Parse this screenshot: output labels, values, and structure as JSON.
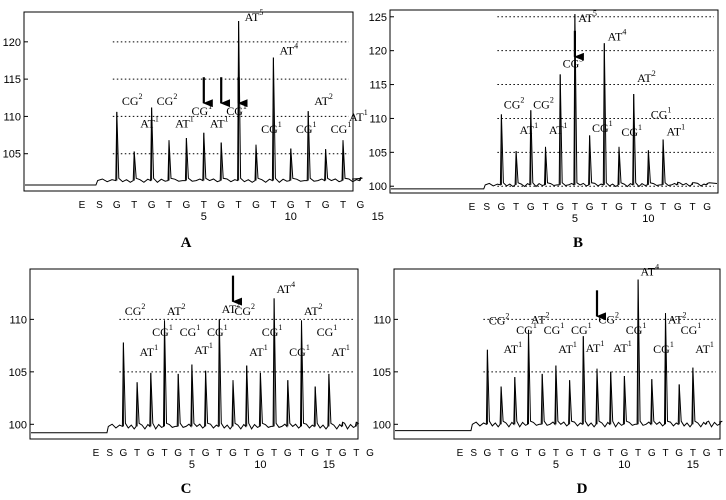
{
  "chart_data": [
    {
      "type": "line",
      "panel": "A",
      "ylim": [
        100,
        124
      ],
      "yticks": [
        105,
        110,
        115,
        120
      ],
      "dotted_levels": [
        105,
        110,
        115,
        120
      ],
      "baseline_dispensed": 101.4,
      "dispensation": [
        "E",
        "S",
        "G",
        "T",
        "G",
        "T",
        "G",
        "T",
        "G",
        "T",
        "G",
        "T",
        "G",
        "T",
        "G",
        "T",
        "G"
      ],
      "x_numbers": [
        {
          "pos": 7,
          "label": "5"
        },
        {
          "pos": 12,
          "label": "10"
        },
        {
          "pos": 17,
          "label": "15"
        }
      ],
      "peaks": [
        110.6,
        105.3,
        111.2,
        106.8,
        107.1,
        107.8,
        106.5,
        122.8,
        106.2,
        117.9,
        105.7,
        110.7,
        105.6,
        106.8,
        101.8
      ],
      "annotations": [
        {
          "label": "CG",
          "sup": "2",
          "pos": 3,
          "y": 111.5
        },
        {
          "label": "AT",
          "sup": "1",
          "pos": 4,
          "y": 108.5
        },
        {
          "label": "CG",
          "sup": "2",
          "pos": 5,
          "y": 111.5
        },
        {
          "label": "AT",
          "sup": "1",
          "pos": 6,
          "y": 108.5
        },
        {
          "label": "CG",
          "sup": "1",
          "pos": 7,
          "y": 110.2
        },
        {
          "label": "AT",
          "sup": "1",
          "pos": 8,
          "y": 108.5
        },
        {
          "label": "CG",
          "sup": "1",
          "pos": 9,
          "y": 110.2
        },
        {
          "label": "AT",
          "sup": "5",
          "pos": 10,
          "y": 122.8
        },
        {
          "label": "CG",
          "sup": "1",
          "pos": 11,
          "y": 107.8
        },
        {
          "label": "AT",
          "sup": "4",
          "pos": 12,
          "y": 118.3
        },
        {
          "label": "CG",
          "sup": "1",
          "pos": 13,
          "y": 107.8
        },
        {
          "label": "AT",
          "sup": "2",
          "pos": 14,
          "y": 111.5
        },
        {
          "label": "CG",
          "sup": "1",
          "pos": 15,
          "y": 107.8
        },
        {
          "label": "AT",
          "sup": "1",
          "pos": 16,
          "y": 109.4
        }
      ],
      "arrows": [
        7,
        8,
        9
      ],
      "arrow_tip": 111.5
    },
    {
      "type": "line",
      "panel": "B",
      "ylim": [
        99,
        126
      ],
      "yticks": [
        100,
        105,
        110,
        115,
        120,
        125
      ],
      "dotted_levels": [
        100,
        105,
        110,
        115,
        120,
        125
      ],
      "baseline_dispensed": 100.2,
      "dispensation": [
        "E",
        "S",
        "G",
        "T",
        "G",
        "T",
        "G",
        "T",
        "G",
        "T",
        "G",
        "T",
        "G",
        "T",
        "G",
        "T",
        "G"
      ],
      "x_numbers": [
        {
          "pos": 7,
          "label": "5"
        },
        {
          "pos": 12,
          "label": "10"
        }
      ],
      "peaks": [
        110.6,
        105.2,
        111.2,
        105.8,
        116.5,
        125.4,
        107.5,
        121.1,
        105.8,
        113.6,
        105.3,
        106.9,
        100.6,
        100.5,
        100.4
      ],
      "annotations": [
        {
          "label": "CG",
          "sup": "2",
          "pos": 3,
          "y": 111.5
        },
        {
          "label": "AT",
          "sup": "1",
          "pos": 4,
          "y": 107.7
        },
        {
          "label": "CG",
          "sup": "2",
          "pos": 5,
          "y": 111.5
        },
        {
          "label": "AT",
          "sup": "1",
          "pos": 6,
          "y": 107.7
        },
        {
          "label": "CG",
          "sup": "3",
          "pos": 7,
          "y": 117.5
        },
        {
          "label": "AT",
          "sup": "5",
          "pos": 8,
          "y": 124.2
        },
        {
          "label": "CG",
          "sup": "1",
          "pos": 9,
          "y": 108.0
        },
        {
          "label": "AT",
          "sup": "4",
          "pos": 10,
          "y": 121.5
        },
        {
          "label": "CG",
          "sup": "1",
          "pos": 11,
          "y": 107.4
        },
        {
          "label": "AT",
          "sup": "2",
          "pos": 12,
          "y": 115.4
        },
        {
          "label": "CG",
          "sup": "1",
          "pos": 13,
          "y": 110.0
        },
        {
          "label": "AT",
          "sup": "1",
          "pos": 14,
          "y": 107.5
        }
      ],
      "arrows": [
        7
      ],
      "arrow_tip": 118.8
    },
    {
      "type": "line",
      "panel": "C",
      "ylim": [
        98.6,
        114.8
      ],
      "yticks": [
        100,
        105,
        110
      ],
      "dotted_levels": [
        105,
        110
      ],
      "baseline_dispensed": 99.8,
      "dispensation": [
        "E",
        "S",
        "G",
        "T",
        "G",
        "T",
        "G",
        "T",
        "G",
        "T",
        "G",
        "T",
        "G",
        "T",
        "G",
        "T",
        "G",
        "T",
        "G",
        "T",
        "G"
      ],
      "x_numbers": [
        {
          "pos": 7,
          "label": "5"
        },
        {
          "pos": 12,
          "label": "10"
        },
        {
          "pos": 17,
          "label": "15"
        }
      ],
      "peaks": [
        107.8,
        104.0,
        104.9,
        109.9,
        104.8,
        105.7,
        105.1,
        110.0,
        104.2,
        105.6,
        104.9,
        112.0,
        104.2,
        109.9,
        103.6,
        104.8,
        100.2,
        100.2
      ],
      "annotations": [
        {
          "label": "CG",
          "sup": "2",
          "pos": 3,
          "y": 110.4
        },
        {
          "label": "AT",
          "sup": "1",
          "pos": 4,
          "y": 106.5
        },
        {
          "label": "CG",
          "sup": "1",
          "pos": 5,
          "y": 108.4
        },
        {
          "label": "AT",
          "sup": "2",
          "pos": 6,
          "y": 110.4
        },
        {
          "label": "CG",
          "sup": "1",
          "pos": 7,
          "y": 108.4
        },
        {
          "label": "AT",
          "sup": "1",
          "pos": 8,
          "y": 106.7
        },
        {
          "label": "CG",
          "sup": "1",
          "pos": 9,
          "y": 108.4
        },
        {
          "label": "AT",
          "sup": "2",
          "pos": 10,
          "y": 110.6
        },
        {
          "label": "CG",
          "sup": "2",
          "pos": 11,
          "y": 110.4
        },
        {
          "label": "AT",
          "sup": "1",
          "pos": 12,
          "y": 106.5
        },
        {
          "label": "CG",
          "sup": "1",
          "pos": 13,
          "y": 108.4
        },
        {
          "label": "AT",
          "sup": "4",
          "pos": 14,
          "y": 112.5
        },
        {
          "label": "CG",
          "sup": "1",
          "pos": 15,
          "y": 106.5
        },
        {
          "label": "AT",
          "sup": "2",
          "pos": 16,
          "y": 110.4
        },
        {
          "label": "CG",
          "sup": "1",
          "pos": 17,
          "y": 108.4
        },
        {
          "label": "AT",
          "sup": "1",
          "pos": 18,
          "y": 106.5
        }
      ],
      "arrows": [
        10
      ],
      "arrow_tip": 111.5
    },
    {
      "type": "line",
      "panel": "D",
      "ylim": [
        98.6,
        114.8
      ],
      "yticks": [
        100,
        105,
        110
      ],
      "dotted_levels": [
        105,
        110
      ],
      "baseline_dispensed": 100.0,
      "dispensation": [
        "E",
        "S",
        "G",
        "T",
        "G",
        "T",
        "G",
        "T",
        "G",
        "T",
        "G",
        "T",
        "G",
        "T",
        "G",
        "T",
        "G",
        "T",
        "G",
        "T",
        "G"
      ],
      "x_numbers": [
        {
          "pos": 7,
          "label": "5"
        },
        {
          "pos": 12,
          "label": "10"
        },
        {
          "pos": 17,
          "label": "15"
        }
      ],
      "peaks": [
        107.1,
        103.6,
        104.5,
        109.0,
        104.8,
        105.6,
        104.2,
        108.4,
        105.3,
        105.0,
        104.6,
        113.8,
        104.3,
        110.6,
        103.8,
        105.4,
        100.2,
        100.2
      ],
      "annotations": [
        {
          "label": "CG",
          "sup": "2",
          "pos": 3,
          "y": 109.5
        },
        {
          "label": "AT",
          "sup": "1",
          "pos": 4,
          "y": 106.8
        },
        {
          "label": "CG",
          "sup": "1",
          "pos": 5,
          "y": 108.6
        },
        {
          "label": "AT",
          "sup": "2",
          "pos": 6,
          "y": 109.6
        },
        {
          "label": "CG",
          "sup": "1",
          "pos": 7,
          "y": 108.6
        },
        {
          "label": "AT",
          "sup": "1",
          "pos": 8,
          "y": 106.8
        },
        {
          "label": "CG",
          "sup": "1",
          "pos": 9,
          "y": 108.6
        },
        {
          "label": "AT",
          "sup": "1",
          "pos": 10,
          "y": 106.9
        },
        {
          "label": "CG",
          "sup": "2",
          "pos": 11,
          "y": 109.6
        },
        {
          "label": "AT",
          "sup": "1",
          "pos": 12,
          "y": 106.9
        },
        {
          "label": "CG",
          "sup": "1",
          "pos": 13,
          "y": 108.6
        },
        {
          "label": "AT",
          "sup": "4",
          "pos": 14,
          "y": 114.2
        },
        {
          "label": "CG",
          "sup": "1",
          "pos": 15,
          "y": 106.8
        },
        {
          "label": "AT",
          "sup": "2",
          "pos": 16,
          "y": 109.6
        },
        {
          "label": "CG",
          "sup": "1",
          "pos": 17,
          "y": 108.6
        },
        {
          "label": "AT",
          "sup": "1",
          "pos": 18,
          "y": 106.8
        }
      ],
      "arrows": [
        10
      ],
      "arrow_tip": 110.1
    }
  ]
}
